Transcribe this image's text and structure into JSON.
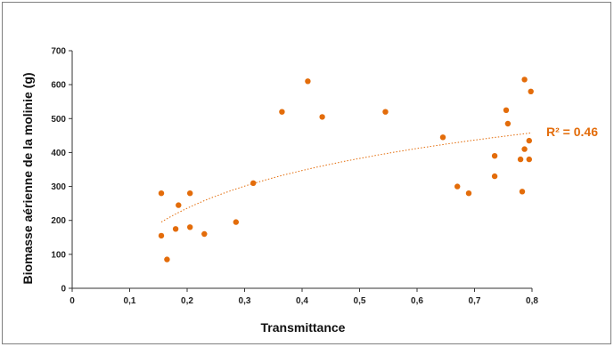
{
  "chart_data": {
    "type": "scatter",
    "title": "",
    "xlabel": "Transmittance",
    "ylabel": "Biomasse aérienne de la molinie (g)",
    "xlim": [
      0,
      0.8
    ],
    "ylim": [
      0,
      700
    ],
    "x_ticks": [
      "0",
      "0,1",
      "0,2",
      "0,3",
      "0,4",
      "0,5",
      "0,6",
      "0,7",
      "0,8"
    ],
    "y_ticks": [
      "0",
      "100",
      "200",
      "300",
      "400",
      "500",
      "600",
      "700"
    ],
    "grid": false,
    "series": [
      {
        "points": [
          [
            0.155,
            280
          ],
          [
            0.155,
            155
          ],
          [
            0.165,
            85
          ],
          [
            0.18,
            175
          ],
          [
            0.185,
            245
          ],
          [
            0.205,
            280
          ],
          [
            0.205,
            180
          ],
          [
            0.23,
            160
          ],
          [
            0.285,
            195
          ],
          [
            0.315,
            310
          ],
          [
            0.365,
            520
          ],
          [
            0.41,
            610
          ],
          [
            0.435,
            505
          ],
          [
            0.545,
            520
          ],
          [
            0.645,
            445
          ],
          [
            0.67,
            300
          ],
          [
            0.69,
            280
          ],
          [
            0.735,
            390
          ],
          [
            0.735,
            330
          ],
          [
            0.755,
            525
          ],
          [
            0.758,
            485
          ],
          [
            0.78,
            380
          ],
          [
            0.783,
            285
          ],
          [
            0.787,
            615
          ],
          [
            0.787,
            410
          ],
          [
            0.795,
            380
          ],
          [
            0.795,
            435
          ],
          [
            0.798,
            580
          ]
        ]
      }
    ],
    "trendline": {
      "type": "logarithmic",
      "x_range": [
        0.155,
        0.8
      ],
      "y_at_start": 195,
      "y_at_end": 458,
      "label": "R² = 0.46"
    },
    "colors": {
      "points": "#E36C0A",
      "trendline": "#E36C0A",
      "axis": "#333333"
    }
  }
}
